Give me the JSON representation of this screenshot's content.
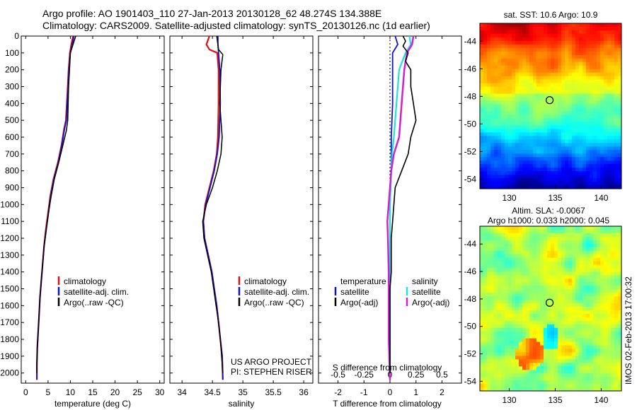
{
  "header": {
    "line1": "Argo profile: AO 1901403_110 27-Jan-2013 20130128_62 48.274S 134.388E",
    "line2": "Climatology: CARS2009. Satellite-adjusted climatology: synTS_20130126.nc (1d earlier)"
  },
  "watermark": "IMOS 02-Feb-2013 17:00:32",
  "colors": {
    "climatology": "#e01010",
    "satellite": "#1010d0",
    "argo": "#000000",
    "cyan": "#20e0e0",
    "magenta": "#d020d0"
  },
  "chart_data": [
    {
      "type": "line",
      "panel": "temperature",
      "xlabel": "temperature (deg C)",
      "xlim": [
        -1,
        31
      ],
      "ylim": [
        2060,
        0
      ],
      "xticks": [
        0,
        5,
        10,
        15,
        20,
        25,
        30
      ],
      "yticks": [
        0,
        100,
        200,
        300,
        400,
        500,
        600,
        700,
        800,
        900,
        1000,
        1100,
        1200,
        1300,
        1400,
        1500,
        1600,
        1700,
        1800,
        1900,
        2000
      ],
      "legend": [
        "climatology",
        "satellite-adj. clim.",
        "Argo(..raw -QC)"
      ],
      "series": [
        {
          "name": "climatology",
          "color": "#e01010",
          "width": 2.2,
          "points": [
            [
              10.6,
              0
            ],
            [
              10.2,
              50
            ],
            [
              9.9,
              100
            ],
            [
              9.6,
              200
            ],
            [
              9.4,
              300
            ],
            [
              9.2,
              400
            ],
            [
              9.0,
              500
            ],
            [
              8.6,
              550
            ],
            [
              8.0,
              650
            ],
            [
              7.2,
              750
            ],
            [
              6.2,
              850
            ],
            [
              5.5,
              950
            ],
            [
              5.0,
              1050
            ],
            [
              4.5,
              1150
            ],
            [
              4.1,
              1250
            ],
            [
              3.8,
              1350
            ],
            [
              3.5,
              1450
            ],
            [
              3.2,
              1550
            ],
            [
              3.0,
              1650
            ],
            [
              2.8,
              1750
            ],
            [
              2.6,
              1850
            ],
            [
              2.5,
              1950
            ],
            [
              2.5,
              2040
            ]
          ]
        },
        {
          "name": "satellite-adj. clim.",
          "color": "#1010d0",
          "width": 1.8,
          "points": [
            [
              10.8,
              0
            ],
            [
              10.4,
              50
            ],
            [
              10.0,
              100
            ],
            [
              9.7,
              200
            ],
            [
              9.5,
              300
            ],
            [
              9.3,
              400
            ],
            [
              9.1,
              500
            ],
            [
              8.7,
              550
            ],
            [
              8.1,
              650
            ],
            [
              7.3,
              750
            ],
            [
              6.3,
              850
            ],
            [
              5.6,
              950
            ],
            [
              5.1,
              1050
            ],
            [
              4.6,
              1150
            ],
            [
              4.1,
              1250
            ],
            [
              3.8,
              1350
            ],
            [
              3.5,
              1450
            ],
            [
              3.2,
              1550
            ],
            [
              3.0,
              1650
            ],
            [
              2.8,
              1750
            ],
            [
              2.6,
              1850
            ],
            [
              2.5,
              1950
            ],
            [
              2.5,
              2040
            ]
          ]
        },
        {
          "name": "Argo(..raw -QC)",
          "color": "#000000",
          "width": 1.5,
          "points": [
            [
              11.2,
              0
            ],
            [
              10.6,
              50
            ],
            [
              10.0,
              100
            ],
            [
              9.8,
              200
            ],
            [
              9.6,
              300
            ],
            [
              9.5,
              400
            ],
            [
              9.4,
              500
            ],
            [
              9.1,
              560
            ],
            [
              8.3,
              650
            ],
            [
              7.4,
              750
            ],
            [
              6.4,
              850
            ],
            [
              5.7,
              950
            ],
            [
              5.1,
              1050
            ],
            [
              4.6,
              1150
            ],
            [
              4.1,
              1250
            ],
            [
              3.8,
              1350
            ],
            [
              3.5,
              1450
            ],
            [
              3.2,
              1550
            ],
            [
              3.0,
              1650
            ],
            [
              2.8,
              1750
            ],
            [
              2.6,
              1850
            ],
            [
              2.5,
              1950
            ],
            [
              2.5,
              2000
            ]
          ]
        }
      ]
    },
    {
      "type": "line",
      "panel": "salinity",
      "xlabel": "salinity",
      "xlim": [
        33.8,
        36.15
      ],
      "ylim": [
        2060,
        0
      ],
      "xticks": [
        34,
        34.5,
        35,
        35.5,
        36
      ],
      "legend": [
        "climatology",
        "satellite-adj. clim.",
        "Argo(..raw -QC)"
      ],
      "annotation": [
        "US ARGO PROJECT",
        "PI: STEPHEN RISER"
      ],
      "series": [
        {
          "name": "climatology",
          "color": "#e01010",
          "width": 2.2,
          "points": [
            [
              34.45,
              0
            ],
            [
              34.4,
              50
            ],
            [
              34.45,
              80
            ],
            [
              34.58,
              100
            ],
            [
              34.6,
              200
            ],
            [
              34.6,
              400
            ],
            [
              34.59,
              600
            ],
            [
              34.57,
              700
            ],
            [
              34.52,
              800
            ],
            [
              34.45,
              900
            ],
            [
              34.38,
              1000
            ],
            [
              34.35,
              1100
            ],
            [
              34.37,
              1200
            ],
            [
              34.43,
              1300
            ],
            [
              34.49,
              1400
            ],
            [
              34.53,
              1500
            ],
            [
              34.57,
              1600
            ],
            [
              34.6,
              1700
            ],
            [
              34.63,
              1800
            ],
            [
              34.66,
              1900
            ],
            [
              34.67,
              2040
            ]
          ]
        },
        {
          "name": "satellite-adj. clim.",
          "color": "#1010d0",
          "width": 1.8,
          "points": [
            [
              34.59,
              0
            ],
            [
              34.59,
              50
            ],
            [
              34.6,
              100
            ],
            [
              34.62,
              200
            ],
            [
              34.63,
              400
            ],
            [
              34.61,
              600
            ],
            [
              34.58,
              700
            ],
            [
              34.53,
              800
            ],
            [
              34.46,
              900
            ],
            [
              34.39,
              1000
            ],
            [
              34.35,
              1100
            ],
            [
              34.37,
              1200
            ],
            [
              34.43,
              1300
            ],
            [
              34.49,
              1400
            ],
            [
              34.53,
              1500
            ],
            [
              34.57,
              1600
            ],
            [
              34.6,
              1700
            ],
            [
              34.63,
              1800
            ],
            [
              34.66,
              1900
            ],
            [
              34.67,
              2040
            ]
          ]
        },
        {
          "name": "Argo(..raw -QC)",
          "color": "#000000",
          "width": 1.5,
          "points": [
            [
              34.57,
              0
            ],
            [
              34.6,
              80
            ],
            [
              34.67,
              110
            ],
            [
              34.64,
              200
            ],
            [
              34.62,
              400
            ],
            [
              34.64,
              500
            ],
            [
              34.66,
              600
            ],
            [
              34.64,
              700
            ],
            [
              34.58,
              800
            ],
            [
              34.5,
              900
            ],
            [
              34.4,
              1000
            ],
            [
              34.34,
              1100
            ],
            [
              34.36,
              1200
            ],
            [
              34.42,
              1300
            ],
            [
              34.48,
              1400
            ],
            [
              34.52,
              1500
            ],
            [
              34.56,
              1600
            ],
            [
              34.6,
              1700
            ],
            [
              34.63,
              1800
            ],
            [
              34.65,
              1900
            ],
            [
              34.67,
              2000
            ]
          ]
        }
      ]
    },
    {
      "type": "line",
      "panel": "difference",
      "xlabel": "T difference from climatology",
      "xlabel_top": "S difference from climatology",
      "xlim": [
        -2.75,
        2.75
      ],
      "ylim": [
        2060,
        0
      ],
      "xticks": [
        -2,
        -1,
        0,
        1,
        2
      ],
      "xticks_top": [
        -0.5,
        -0.25,
        0,
        0.25,
        0.5
      ],
      "legend_left": {
        "title": "temperature",
        "entries": [
          "satellite",
          "Argo(-adj)"
        ]
      },
      "legend_right": {
        "title": "salinity",
        "entries": [
          "satellite",
          "Argo(-adj)"
        ]
      },
      "series": [
        {
          "name": "T satellite",
          "color": "#1010d0",
          "width": 1.8,
          "points": [
            [
              0.2,
              0
            ],
            [
              0.3,
              50
            ],
            [
              0.1,
              100
            ],
            [
              0.1,
              200
            ],
            [
              0.1,
              400
            ],
            [
              0.05,
              600
            ],
            [
              0.05,
              800
            ],
            [
              0.0,
              1000
            ],
            [
              0.0,
              1200
            ],
            [
              0.0,
              1500
            ],
            [
              0.0,
              1800
            ],
            [
              0.0,
              2040
            ]
          ]
        },
        {
          "name": "S satellite",
          "color": "#20e0e0",
          "width": 2.2,
          "points": [
            [
              0.75,
              0
            ],
            [
              0.8,
              50
            ],
            [
              0.6,
              100
            ],
            [
              0.35,
              200
            ],
            [
              0.25,
              400
            ],
            [
              0.15,
              600
            ],
            [
              0.08,
              700
            ],
            [
              0.05,
              800
            ],
            [
              0.0,
              1000
            ],
            [
              0.0,
              1200
            ],
            [
              0.0,
              1500
            ],
            [
              0.0,
              1800
            ],
            [
              0.0,
              2040
            ]
          ]
        },
        {
          "name": "S Argo(-adj)",
          "color": "#d020d0",
          "width": 2.5,
          "points": [
            [
              0.9,
              0
            ],
            [
              0.85,
              50
            ],
            [
              0.65,
              100
            ],
            [
              0.55,
              200
            ],
            [
              0.45,
              400
            ],
            [
              0.35,
              600
            ],
            [
              0.15,
              700
            ],
            [
              0.05,
              800
            ],
            [
              -0.05,
              1000
            ],
            [
              -0.1,
              1100
            ],
            [
              -0.08,
              1200
            ],
            [
              -0.05,
              1400
            ],
            [
              -0.05,
              1600
            ],
            [
              -0.05,
              1800
            ],
            [
              0.0,
              2040
            ]
          ]
        },
        {
          "name": "T Argo(-adj)",
          "color": "#000000",
          "width": 1.6,
          "points": [
            [
              0.5,
              0
            ],
            [
              0.6,
              30
            ],
            [
              0.5,
              60
            ],
            [
              0.7,
              100
            ],
            [
              0.6,
              150
            ],
            [
              0.8,
              200
            ],
            [
              0.8,
              300
            ],
            [
              0.9,
              400
            ],
            [
              1.0,
              500
            ],
            [
              0.8,
              600
            ],
            [
              0.7,
              700
            ],
            [
              0.45,
              800
            ],
            [
              0.2,
              900
            ],
            [
              0.15,
              1000
            ],
            [
              0.1,
              1100
            ],
            [
              0.05,
              1200
            ],
            [
              0.05,
              1300
            ],
            [
              0.05,
              1400
            ],
            [
              0.0,
              1500
            ],
            [
              0.0,
              1600
            ],
            [
              0.0,
              1700
            ],
            [
              0.0,
              1800
            ],
            [
              0.0,
              1900
            ],
            [
              0.0,
              2000
            ]
          ]
        }
      ]
    },
    {
      "type": "heatmap",
      "panel": "sst_map",
      "title": "sat. SST: 10.6  Argo: 10.9",
      "xticks": [
        130,
        135,
        140
      ],
      "yticks": [
        -44,
        -46,
        -48,
        -50,
        -52,
        -54
      ],
      "xlim": [
        126.8,
        142.2
      ],
      "ylim": [
        -54.7,
        -42.7
      ],
      "marker": [
        134.388,
        -48.274
      ]
    },
    {
      "type": "heatmap",
      "panel": "sla_map",
      "title": "Altim. SLA: -0.0067",
      "subtitle": "Argo h1000: 0.033 h2000: 0.045",
      "xticks": [
        130,
        135,
        140
      ],
      "yticks": [
        -44,
        -46,
        -48,
        -50,
        -52,
        -54
      ],
      "xlim": [
        126.8,
        142.2
      ],
      "ylim": [
        -54.7,
        -42.7
      ],
      "marker": [
        134.388,
        -48.274
      ]
    }
  ]
}
